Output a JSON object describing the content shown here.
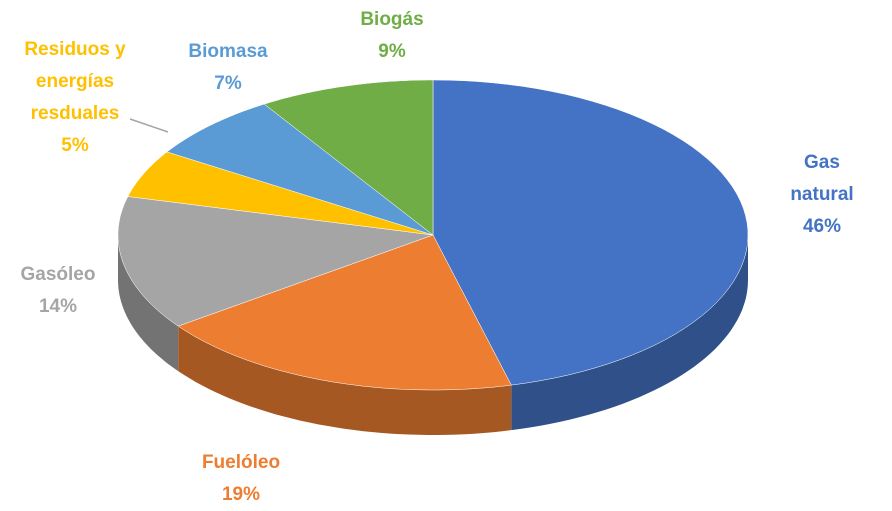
{
  "chart_data": {
    "type": "pie",
    "categories": [
      "Gas natural",
      "Fuelóleo",
      "Gasóleo",
      "Residuos y energías resduales",
      "Biomasa",
      "Biogás"
    ],
    "values": [
      46,
      19,
      14,
      5,
      7,
      9
    ],
    "value_labels": [
      "46%",
      "19%",
      "14%",
      "5%",
      "7%",
      "9%"
    ],
    "colors": [
      "#4472c4",
      "#ed7d31",
      "#a5a5a5",
      "#ffc000",
      "#5b9bd5",
      "#70ad47"
    ]
  }
}
